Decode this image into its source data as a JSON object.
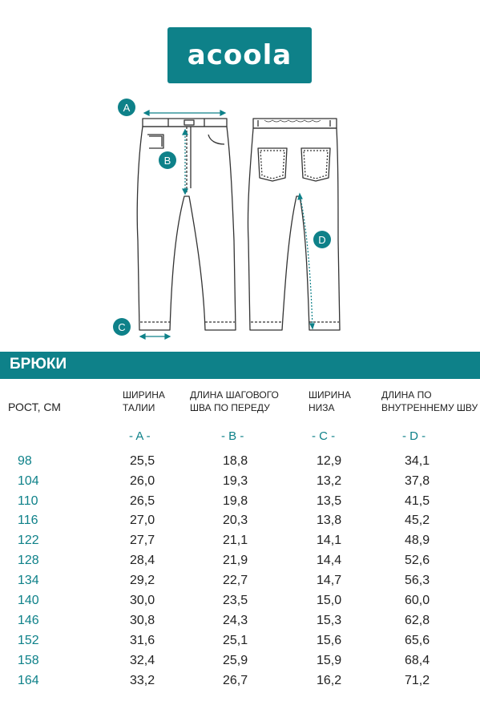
{
  "brand": {
    "logo_text": "acoola",
    "color": "#0e8189"
  },
  "markers": {
    "a": "A",
    "b": "B",
    "c": "C",
    "d": "D"
  },
  "section_title": "БРЮКИ",
  "table": {
    "height_header": "РОСТ, СМ",
    "columns": [
      {
        "line1": "ШИРИНА",
        "line2": "ТАЛИИ",
        "letter": "- A -"
      },
      {
        "line1": "ДЛИНА ШАГОВОГО",
        "line2": "ШВА ПО ПЕРЕДУ",
        "letter": "- B -"
      },
      {
        "line1": "ШИРИНА",
        "line2": "НИЗА",
        "letter": "- C -"
      },
      {
        "line1": "ДЛИНА ПО",
        "line2": "ВНУТРЕННЕМУ ШВУ",
        "letter": "- D -"
      }
    ],
    "rows": [
      {
        "height": "98",
        "a": "25,5",
        "b": "18,8",
        "c": "12,9",
        "d": "34,1"
      },
      {
        "height": "104",
        "a": "26,0",
        "b": "19,3",
        "c": "13,2",
        "d": "37,8"
      },
      {
        "height": "110",
        "a": "26,5",
        "b": "19,8",
        "c": "13,5",
        "d": "41,5"
      },
      {
        "height": "116",
        "a": "27,0",
        "b": "20,3",
        "c": "13,8",
        "d": "45,2"
      },
      {
        "height": "122",
        "a": "27,7",
        "b": "21,1",
        "c": "14,1",
        "d": "48,9"
      },
      {
        "height": "128",
        "a": "28,4",
        "b": "21,9",
        "c": "14,4",
        "d": "52,6"
      },
      {
        "height": "134",
        "a": "29,2",
        "b": "22,7",
        "c": "14,7",
        "d": "56,3"
      },
      {
        "height": "140",
        "a": "30,0",
        "b": "23,5",
        "c": "15,0",
        "d": "60,0"
      },
      {
        "height": "146",
        "a": "30,8",
        "b": "24,3",
        "c": "15,3",
        "d": "62,8"
      },
      {
        "height": "152",
        "a": "31,6",
        "b": "25,1",
        "c": "15,6",
        "d": "65,6"
      },
      {
        "height": "158",
        "a": "32,4",
        "b": "25,9",
        "c": "15,9",
        "d": "68,4"
      },
      {
        "height": "164",
        "a": "33,2",
        "b": "26,7",
        "c": "16,2",
        "d": "71,2"
      }
    ]
  }
}
